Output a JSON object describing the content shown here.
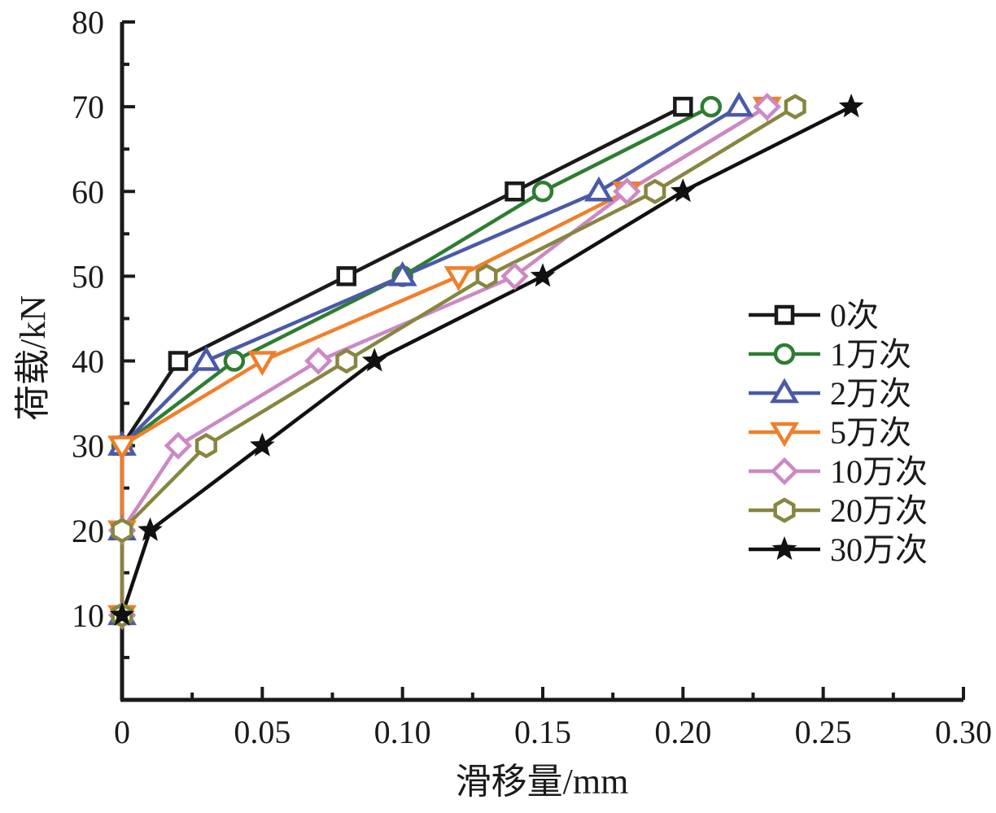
{
  "chart_data": {
    "type": "line",
    "xlabel": "滑移量/mm",
    "ylabel": "荷载/kN",
    "xlim": [
      0,
      0.3
    ],
    "ylim": [
      0,
      80
    ],
    "x_ticks": [
      "0",
      "0.05",
      "0.10",
      "0.15",
      "0.20",
      "0.25",
      "0.30"
    ],
    "x_tick_values": [
      0,
      0.05,
      0.1,
      0.15,
      0.2,
      0.25,
      0.3
    ],
    "y_ticks": [
      "10",
      "20",
      "30",
      "40",
      "50",
      "60",
      "70",
      "80"
    ],
    "y_tick_values": [
      10,
      20,
      30,
      40,
      50,
      60,
      70,
      80
    ],
    "grid": false,
    "legend_position": "right",
    "series": [
      {
        "name": "0次",
        "marker": "square",
        "color": "#1a1a1a",
        "x": [
          0,
          0,
          0,
          0.02,
          0.08,
          0.14,
          0.2
        ],
        "y": [
          10,
          20,
          30,
          40,
          50,
          60,
          70
        ]
      },
      {
        "name": "1万次",
        "marker": "circle",
        "color": "#2e7d32",
        "x": [
          0,
          0,
          0,
          0.04,
          0.1,
          0.15,
          0.21
        ],
        "y": [
          10,
          20,
          30,
          40,
          50,
          60,
          70
        ]
      },
      {
        "name": "2万次",
        "marker": "triangle-up",
        "color": "#4a5aa8",
        "x": [
          0,
          0,
          0,
          0.03,
          0.1,
          0.17,
          0.22
        ],
        "y": [
          10,
          20,
          30,
          40,
          50,
          60,
          70
        ]
      },
      {
        "name": "5万次",
        "marker": "triangle-down",
        "color": "#f07f2a",
        "x": [
          0,
          0,
          0,
          0.05,
          0.12,
          0.18,
          0.23
        ],
        "y": [
          10,
          20,
          30,
          40,
          50,
          60,
          70
        ]
      },
      {
        "name": "10万次",
        "marker": "diamond",
        "color": "#cc88c4",
        "x": [
          0,
          0,
          0.02,
          0.07,
          0.14,
          0.18,
          0.23
        ],
        "y": [
          10,
          20,
          30,
          40,
          50,
          60,
          70
        ]
      },
      {
        "name": "20万次",
        "marker": "hexagon",
        "color": "#868640",
        "x": [
          0,
          0,
          0.03,
          0.08,
          0.13,
          0.19,
          0.24
        ],
        "y": [
          10,
          20,
          30,
          40,
          50,
          60,
          70
        ]
      },
      {
        "name": "30万次",
        "marker": "star",
        "color": "#111111",
        "x": [
          0,
          0.01,
          0.05,
          0.09,
          0.15,
          0.2,
          0.26
        ],
        "y": [
          10,
          20,
          30,
          40,
          50,
          60,
          70
        ]
      }
    ]
  }
}
